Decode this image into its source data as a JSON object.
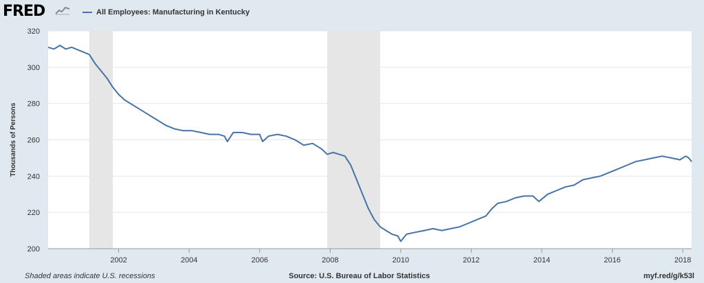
{
  "header": {
    "logo_text": "FRED",
    "logo_icon": "line-chart-icon",
    "legend_label": "All Employees: Manufacturing in Kentucky"
  },
  "footer": {
    "note": "Shaded areas indicate U.S. recessions",
    "source": "Source: U.S. Bureau of Labor Statistics",
    "link": "myf.red/g/k53l"
  },
  "colors": {
    "background": "#e1e9f0",
    "plot_background": "#ffffff",
    "series_line": "#4572a7",
    "recession_shade": "#e6e6e6",
    "gridline": "#e6e6e6"
  },
  "chart_data": {
    "type": "line",
    "xlabel": "",
    "ylabel": "Thousands of Persons",
    "ylim": [
      200,
      320
    ],
    "xlim": [
      "2000-01",
      "2018-04"
    ],
    "y_ticks": [
      200,
      220,
      240,
      260,
      280,
      300,
      320
    ],
    "x_ticks": [
      "2002",
      "2004",
      "2006",
      "2008",
      "2010",
      "2012",
      "2014",
      "2016",
      "2018"
    ],
    "grid": true,
    "legend_position": "top-left",
    "recessions": [
      {
        "start": "2001-03",
        "end": "2001-11"
      },
      {
        "start": "2007-12",
        "end": "2009-06"
      }
    ],
    "series": [
      {
        "name": "All Employees: Manufacturing in Kentucky",
        "points": [
          [
            "2000-01",
            311
          ],
          [
            "2000-03",
            310
          ],
          [
            "2000-05",
            312
          ],
          [
            "2000-07",
            310
          ],
          [
            "2000-09",
            311
          ],
          [
            "2000-12",
            309
          ],
          [
            "2001-03",
            307
          ],
          [
            "2001-05",
            302
          ],
          [
            "2001-07",
            298
          ],
          [
            "2001-09",
            294
          ],
          [
            "2001-11",
            289
          ],
          [
            "2002-01",
            285
          ],
          [
            "2002-03",
            282
          ],
          [
            "2002-06",
            279
          ],
          [
            "2002-09",
            276
          ],
          [
            "2002-12",
            273
          ],
          [
            "2003-02",
            271
          ],
          [
            "2003-05",
            268
          ],
          [
            "2003-08",
            266
          ],
          [
            "2003-11",
            265
          ],
          [
            "2004-02",
            265
          ],
          [
            "2004-05",
            264
          ],
          [
            "2004-08",
            263
          ],
          [
            "2004-11",
            263
          ],
          [
            "2005-01",
            262
          ],
          [
            "2005-02",
            259
          ],
          [
            "2005-04",
            264
          ],
          [
            "2005-07",
            264
          ],
          [
            "2005-10",
            263
          ],
          [
            "2006-01",
            263
          ],
          [
            "2006-02",
            259
          ],
          [
            "2006-04",
            262
          ],
          [
            "2006-07",
            263
          ],
          [
            "2006-10",
            262
          ],
          [
            "2007-01",
            260
          ],
          [
            "2007-04",
            257
          ],
          [
            "2007-07",
            258
          ],
          [
            "2007-10",
            255
          ],
          [
            "2007-12",
            252
          ],
          [
            "2008-02",
            253
          ],
          [
            "2008-04",
            252
          ],
          [
            "2008-06",
            251
          ],
          [
            "2008-08",
            246
          ],
          [
            "2008-10",
            238
          ],
          [
            "2008-12",
            230
          ],
          [
            "2009-02",
            222
          ],
          [
            "2009-04",
            216
          ],
          [
            "2009-06",
            212
          ],
          [
            "2009-08",
            210
          ],
          [
            "2009-10",
            208
          ],
          [
            "2009-12",
            207
          ],
          [
            "2010-01",
            204
          ],
          [
            "2010-03",
            208
          ],
          [
            "2010-06",
            209
          ],
          [
            "2010-09",
            210
          ],
          [
            "2010-12",
            211
          ],
          [
            "2011-03",
            210
          ],
          [
            "2011-06",
            211
          ],
          [
            "2011-09",
            212
          ],
          [
            "2011-12",
            214
          ],
          [
            "2012-03",
            216
          ],
          [
            "2012-06",
            218
          ],
          [
            "2012-08",
            222
          ],
          [
            "2012-10",
            225
          ],
          [
            "2013-01",
            226
          ],
          [
            "2013-04",
            228
          ],
          [
            "2013-07",
            229
          ],
          [
            "2013-10",
            229
          ],
          [
            "2013-12",
            226
          ],
          [
            "2014-03",
            230
          ],
          [
            "2014-06",
            232
          ],
          [
            "2014-09",
            234
          ],
          [
            "2014-12",
            235
          ],
          [
            "2015-03",
            238
          ],
          [
            "2015-06",
            239
          ],
          [
            "2015-09",
            240
          ],
          [
            "2015-12",
            242
          ],
          [
            "2016-03",
            244
          ],
          [
            "2016-06",
            246
          ],
          [
            "2016-09",
            248
          ],
          [
            "2016-12",
            249
          ],
          [
            "2017-03",
            250
          ],
          [
            "2017-06",
            251
          ],
          [
            "2017-09",
            250
          ],
          [
            "2017-12",
            249
          ],
          [
            "2018-01",
            250
          ],
          [
            "2018-02",
            251
          ],
          [
            "2018-03",
            250
          ],
          [
            "2018-04",
            248
          ]
        ]
      }
    ]
  }
}
